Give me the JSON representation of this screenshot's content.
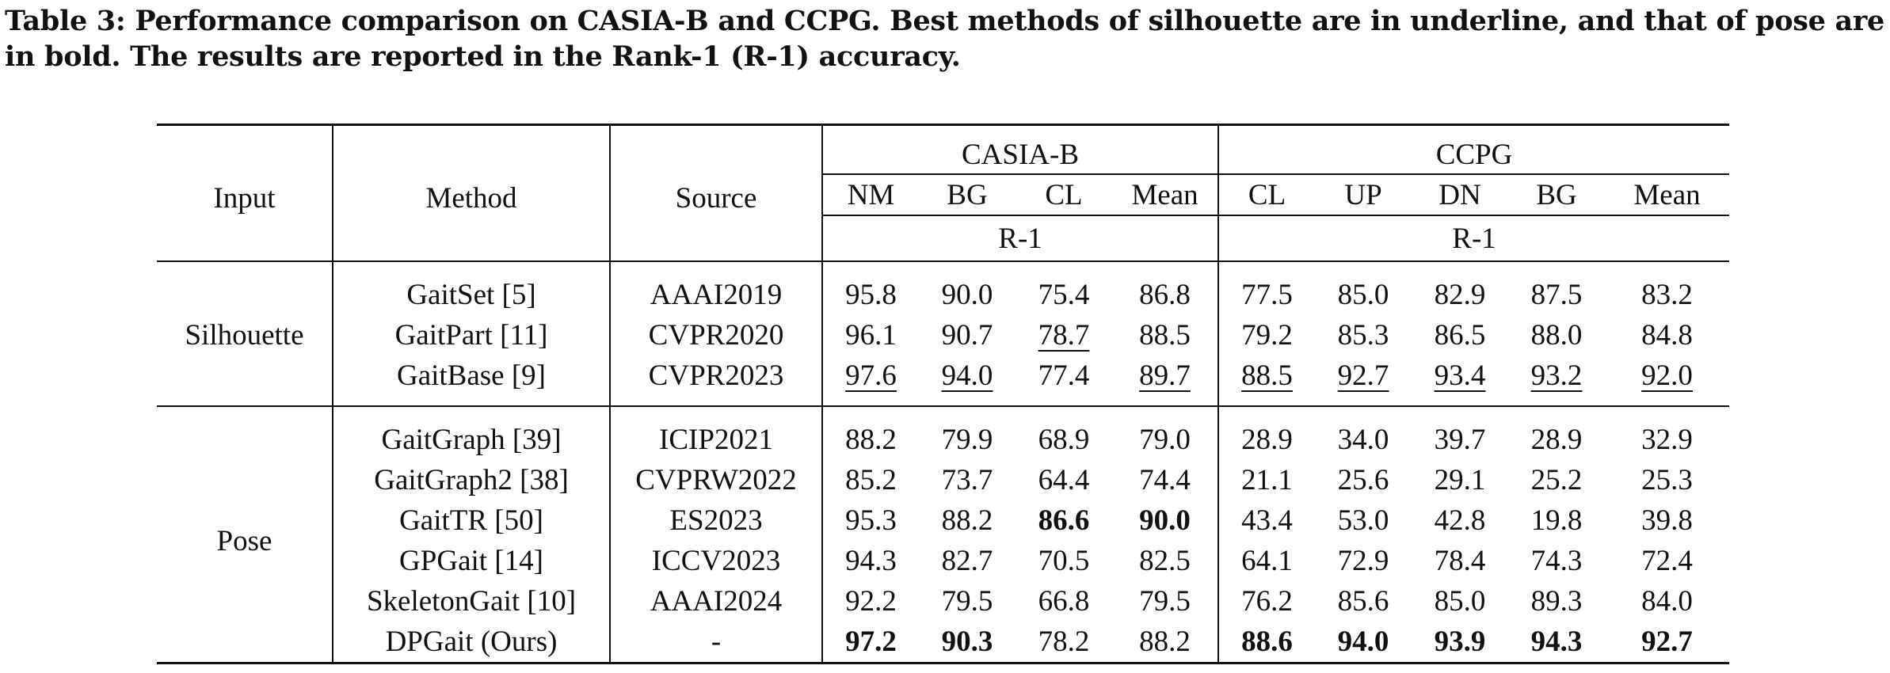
{
  "caption": "Table 3: Performance comparison on CASIA-B and CCPG. Best methods of silhouette are in underline, and that of pose are in bold. The results are reported in the Rank-1 (R-1) accuracy.",
  "headers": {
    "input": "Input",
    "method": "Method",
    "source": "Source",
    "casia": "CASIA-B",
    "ccpg": "CCPG",
    "casia_cols": [
      "NM",
      "BG",
      "CL",
      "Mean"
    ],
    "ccpg_cols": [
      "CL",
      "UP",
      "DN",
      "BG",
      "Mean"
    ],
    "metric": "R-1"
  },
  "groups": {
    "silhouette": "Silhouette",
    "pose": "Pose"
  },
  "rows": [
    {
      "method": "GaitSet [5]",
      "source": "AAAI2019",
      "v": [
        "95.8",
        "90.0",
        "75.4",
        "86.8",
        "77.5",
        "85.0",
        "82.9",
        "87.5",
        "83.2"
      ]
    },
    {
      "method": "GaitPart [11]",
      "source": "CVPR2020",
      "v": [
        "96.1",
        "90.7",
        "78.7",
        "88.5",
        "79.2",
        "85.3",
        "86.5",
        "88.0",
        "84.8"
      ]
    },
    {
      "method": "GaitBase [9]",
      "source": "CVPR2023",
      "v": [
        "97.6",
        "94.0",
        "77.4",
        "89.7",
        "88.5",
        "92.7",
        "93.4",
        "93.2",
        "92.0"
      ]
    },
    {
      "method": "GaitGraph [39]",
      "source": "ICIP2021",
      "v": [
        "88.2",
        "79.9",
        "68.9",
        "79.0",
        "28.9",
        "34.0",
        "39.7",
        "28.9",
        "32.9"
      ]
    },
    {
      "method": "GaitGraph2 [38]",
      "source": "CVPRW2022",
      "v": [
        "85.2",
        "73.7",
        "64.4",
        "74.4",
        "21.1",
        "25.6",
        "29.1",
        "25.2",
        "25.3"
      ]
    },
    {
      "method": "GaitTR [50]",
      "source": "ES2023",
      "v": [
        "95.3",
        "88.2",
        "86.6",
        "90.0",
        "43.4",
        "53.0",
        "42.8",
        "19.8",
        "39.8"
      ]
    },
    {
      "method": "GPGait [14]",
      "source": "ICCV2023",
      "v": [
        "94.3",
        "82.7",
        "70.5",
        "82.5",
        "64.1",
        "72.9",
        "78.4",
        "74.3",
        "72.4"
      ]
    },
    {
      "method": "SkeletonGait [10]",
      "source": "AAAI2024",
      "v": [
        "92.2",
        "79.5",
        "66.8",
        "79.5",
        "76.2",
        "85.6",
        "85.0",
        "89.3",
        "84.0"
      ]
    },
    {
      "method": "DPGait (Ours)",
      "source": "-",
      "v": [
        "97.2",
        "90.3",
        "78.2",
        "88.2",
        "88.6",
        "94.0",
        "93.9",
        "94.3",
        "92.7"
      ]
    }
  ]
}
